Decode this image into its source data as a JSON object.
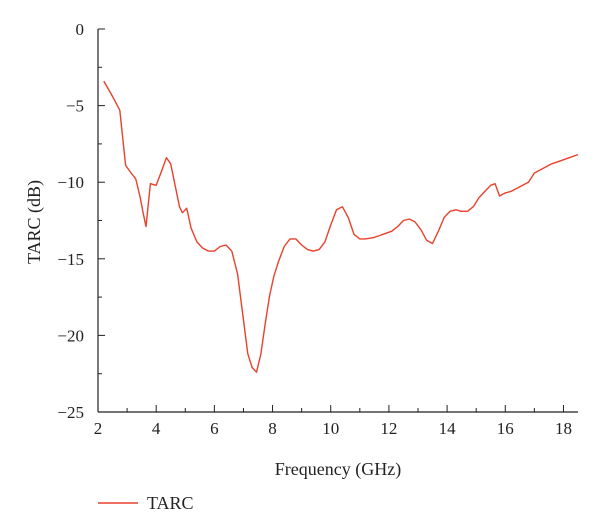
{
  "chart_data": {
    "type": "line",
    "xlabel": "Frequency (GHz)",
    "ylabel": "TARC (dB)",
    "xlim": [
      2,
      18.5
    ],
    "ylim": [
      -25,
      0
    ],
    "x_ticks": [
      2,
      4,
      6,
      8,
      10,
      12,
      14,
      16,
      18
    ],
    "y_ticks": [
      0,
      -5,
      -10,
      -15,
      -20,
      -25
    ],
    "x_minor_step": 1,
    "y_minor_step": 2.5,
    "grid": false,
    "legend_position": "bottom-left",
    "colors": {
      "series": "#e8412c",
      "axis": "#222222"
    },
    "series": [
      {
        "name": "TARC",
        "x": [
          2.2,
          2.5,
          2.75,
          2.95,
          3.1,
          3.3,
          3.45,
          3.55,
          3.65,
          3.8,
          4.0,
          4.2,
          4.35,
          4.5,
          4.65,
          4.8,
          4.9,
          5.05,
          5.2,
          5.4,
          5.6,
          5.8,
          6.0,
          6.2,
          6.4,
          6.6,
          6.8,
          7.0,
          7.15,
          7.3,
          7.45,
          7.6,
          7.75,
          7.9,
          8.05,
          8.2,
          8.4,
          8.6,
          8.8,
          9.0,
          9.2,
          9.4,
          9.6,
          9.8,
          10.0,
          10.2,
          10.4,
          10.6,
          10.8,
          11.0,
          11.2,
          11.5,
          11.8,
          12.1,
          12.3,
          12.5,
          12.7,
          12.9,
          13.1,
          13.3,
          13.5,
          13.7,
          13.9,
          14.1,
          14.3,
          14.5,
          14.7,
          14.9,
          15.1,
          15.3,
          15.5,
          15.65,
          15.8,
          16.0,
          16.2,
          16.5,
          16.8,
          17.0,
          17.3,
          17.6,
          17.9,
          18.2,
          18.5
        ],
        "y": [
          -3.4,
          -4.4,
          -5.3,
          -8.9,
          -9.3,
          -9.8,
          -11.0,
          -12.0,
          -12.9,
          -10.1,
          -10.2,
          -9.2,
          -8.4,
          -8.8,
          -10.2,
          -11.6,
          -12.0,
          -11.7,
          -13.0,
          -13.9,
          -14.3,
          -14.5,
          -14.5,
          -14.2,
          -14.1,
          -14.5,
          -16.0,
          -19.0,
          -21.2,
          -22.1,
          -22.4,
          -21.2,
          -19.2,
          -17.4,
          -16.1,
          -15.2,
          -14.2,
          -13.7,
          -13.7,
          -14.1,
          -14.4,
          -14.5,
          -14.4,
          -13.9,
          -12.8,
          -11.8,
          -11.6,
          -12.3,
          -13.4,
          -13.7,
          -13.7,
          -13.6,
          -13.4,
          -13.2,
          -12.9,
          -12.5,
          -12.4,
          -12.6,
          -13.1,
          -13.8,
          -14.0,
          -13.2,
          -12.3,
          -11.9,
          -11.8,
          -11.9,
          -11.9,
          -11.6,
          -11.0,
          -10.6,
          -10.2,
          -10.1,
          -10.9,
          -10.7,
          -10.6,
          -10.3,
          -10.0,
          -9.4,
          -9.1,
          -8.8,
          -8.6,
          -8.4,
          -8.2
        ]
      }
    ]
  }
}
